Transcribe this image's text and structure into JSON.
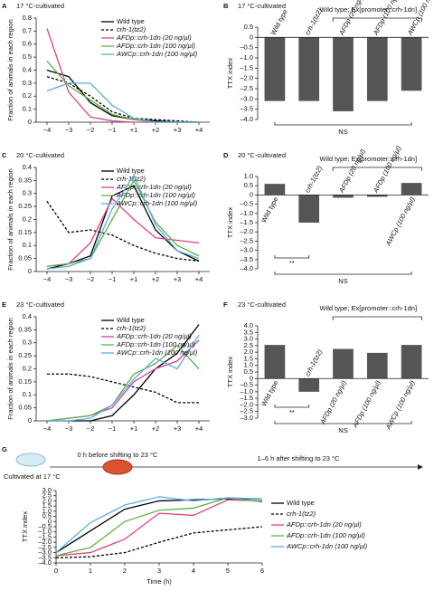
{
  "chart_data": [
    {
      "type": "line",
      "label": "A",
      "title": "17 °C-cultivated",
      "ylabel": "Fraction of animals in each region",
      "categories": [
        "−4",
        "−3",
        "−2",
        "−1",
        "+1",
        "+2",
        "+3",
        "+4"
      ],
      "ylim": [
        0,
        0.8
      ],
      "yticks": [
        0.8,
        0.7,
        0.6,
        0.5,
        0.4,
        0.3,
        0.2,
        0.1,
        0
      ],
      "series": [
        {
          "name": "Wild type",
          "color": "#000000",
          "values": [
            0.4,
            0.35,
            0.15,
            0.05,
            0.02,
            0.01,
            0,
            0
          ]
        },
        {
          "name": "crh-1(tz2)",
          "color": "#000000",
          "dash": true,
          "values": [
            0.35,
            0.3,
            0.2,
            0.08,
            0.03,
            0.02,
            0.01,
            0
          ]
        },
        {
          "name": "AFDp::crh-1dn (20 ng/µl)",
          "color": "#e0408a",
          "values": [
            0.72,
            0.23,
            0.04,
            0.01,
            0,
            0,
            0,
            0
          ]
        },
        {
          "name": "AFDp::crh-1dn (100 ng/µl)",
          "color": "#5fb04a",
          "values": [
            0.47,
            0.28,
            0.17,
            0.06,
            0.02,
            0,
            0,
            0
          ]
        },
        {
          "name": "AWCp::crh-1dn (100 ng/µl)",
          "color": "#5aaee0",
          "values": [
            0.24,
            0.3,
            0.3,
            0.13,
            0.03,
            0,
            0,
            0
          ]
        }
      ]
    },
    {
      "type": "bar",
      "label": "B",
      "title": "17 °C-cultivated",
      "ylabel": "TTX index",
      "categories": [
        "Wild type",
        "crh-1(tz2)",
        "AFDp (20 ng/µl)",
        "AFDp (100 ng/µl)",
        "AWCp (100 ng/µl)"
      ],
      "values": [
        -3.1,
        -3.1,
        -3.6,
        -3.1,
        -2.6
      ],
      "color": "#555555",
      "ylim": [
        -4,
        0.5
      ],
      "yticks": [
        0.5,
        0,
        {
          "value": -0.5,
          "label": "–0.5"
        },
        {
          "value": -1,
          "label": "–1.0"
        },
        {
          "value": -1.5,
          "label": "–1.5"
        },
        {
          "value": -2,
          "label": "–2.0"
        },
        {
          "value": -2.5,
          "label": "–2.5"
        },
        {
          "value": -3,
          "label": "–3.0"
        },
        {
          "value": -3.5,
          "label": "–3.5"
        },
        {
          "value": -4,
          "label": "–4.0"
        }
      ],
      "bracket_label": "Wild type; Ex[promoter::crh-1dn]",
      "ns_label": "NS"
    },
    {
      "type": "line",
      "label": "C",
      "title": "20 °C-cultivated",
      "ylabel": "Fraction of animals in each region",
      "categories": [
        "−4",
        "−3",
        "−2",
        "−1",
        "+1",
        "+2",
        "+3",
        "+4"
      ],
      "ylim": [
        0,
        0.4
      ],
      "yticks": [
        0.4,
        0.35,
        0.3,
        0.25,
        0.2,
        0.15,
        0.1,
        0.05,
        0
      ],
      "series": [
        {
          "name": "Wild type",
          "color": "#000000",
          "values": [
            0.01,
            0.03,
            0.06,
            0.29,
            0.33,
            0.16,
            0.08,
            0.04
          ]
        },
        {
          "name": "crh-1(tz2)",
          "color": "#000000",
          "dash": true,
          "values": [
            0.27,
            0.15,
            0.16,
            0.14,
            0.1,
            0.07,
            0.05,
            0.04
          ]
        },
        {
          "name": "AFDp::crh-1dn (20 ng/µl)",
          "color": "#e0408a",
          "values": [
            0.02,
            0.03,
            0.11,
            0.28,
            0.2,
            0.13,
            0.12,
            0.11
          ]
        },
        {
          "name": "AFDp::crh-1dn (100 ng/µl)",
          "color": "#5fb04a",
          "values": [
            0.02,
            0.03,
            0.05,
            0.2,
            0.35,
            0.19,
            0.1,
            0.06
          ]
        },
        {
          "name": "AWCp::crh-1dn (100 ng/µl)",
          "color": "#5aaee0",
          "values": [
            0.01,
            0.02,
            0.05,
            0.24,
            0.37,
            0.18,
            0.08,
            0.05
          ]
        }
      ]
    },
    {
      "type": "bar",
      "label": "D",
      "title": "20 °C-cultivated",
      "ylabel": "TTX index",
      "categories": [
        "Wild type",
        "crh-1(tz2)",
        "AFDp (20 ng/µl)",
        "AFDp (100 ng/µl)",
        "AWCp (100 ng/µl)"
      ],
      "values": [
        0.6,
        -1.5,
        -0.15,
        -0.1,
        0.65
      ],
      "color": "#555555",
      "ylim": [
        -4,
        1
      ],
      "yticks": [
        {
          "value": 1,
          "label": "1.0"
        },
        0.5,
        0,
        {
          "value": -0.5,
          "label": "–0.5"
        },
        {
          "value": -1,
          "label": "–1.0"
        },
        {
          "value": -1.5,
          "label": "–1.5"
        },
        {
          "value": -2,
          "label": "–2.0"
        },
        {
          "value": -2.5,
          "label": "–2.5"
        },
        {
          "value": -3,
          "label": "–3.0"
        },
        {
          "value": -3.5,
          "label": "–3.5"
        },
        {
          "value": -4,
          "label": "–4.0"
        }
      ],
      "bracket_label": "Wild type; Ex[promoter::crh-1dn]",
      "ns_label": "NS",
      "sig_label": "**"
    },
    {
      "type": "line",
      "label": "E",
      "title": "23 °C-cultivated",
      "ylabel": "Fraction of animals in each region",
      "categories": [
        "−4",
        "−3",
        "−2",
        "−1",
        "+1",
        "+2",
        "+3",
        "+4"
      ],
      "ylim": [
        0,
        0.4
      ],
      "yticks": [
        0.4,
        0.35,
        0.3,
        0.25,
        0.2,
        0.15,
        0.1,
        0.05,
        0
      ],
      "series": [
        {
          "name": "Wild type",
          "color": "#000000",
          "values": [
            0,
            0,
            0,
            0.02,
            0.1,
            0.2,
            0.26,
            0.37
          ]
        },
        {
          "name": "crh-1(tz2)",
          "color": "#000000",
          "dash": true,
          "values": [
            0.18,
            0.18,
            0.17,
            0.15,
            0.13,
            0.11,
            0.07,
            0.07
          ]
        },
        {
          "name": "AFDp::crh-1dn (20 ng/µl)",
          "color": "#e0408a",
          "values": [
            0,
            0.01,
            0.02,
            0.05,
            0.15,
            0.2,
            0.23,
            0.31
          ]
        },
        {
          "name": "AFDp::crh-1dn (100 ng/µl)",
          "color": "#5fb04a",
          "values": [
            0,
            0.01,
            0.02,
            0.06,
            0.18,
            0.22,
            0.29,
            0.2
          ]
        },
        {
          "name": "AWCp::crh-1dn (100 ng/µl)",
          "color": "#5aaee0",
          "values": [
            0,
            0,
            0.01,
            0.06,
            0.16,
            0.24,
            0.2,
            0.33
          ]
        }
      ]
    },
    {
      "type": "bar",
      "label": "F",
      "title": "23 °C-cultivated",
      "ylabel": "TTX index",
      "categories": [
        "Wild type",
        "crh-1(tz2)",
        "AFDp (20 ng/µl)",
        "AFDp (100 ng/µl)",
        "AWCp (100 ng/µl)"
      ],
      "values": [
        2.55,
        -1,
        2.25,
        1.95,
        2.55
      ],
      "color": "#555555",
      "ylim": [
        -3,
        4
      ],
      "yticks": [
        {
          "value": 4,
          "label": "4.0"
        },
        3.5,
        {
          "value": 3,
          "label": "3.0"
        },
        2.5,
        {
          "value": 2,
          "label": "2.0"
        },
        1.5,
        {
          "value": 1,
          "label": "1.0"
        },
        0.5,
        0,
        {
          "value": -0.5,
          "label": "–0.5"
        },
        {
          "value": -1,
          "label": "–1.0"
        },
        {
          "value": -1.5,
          "label": "–1.5"
        },
        {
          "value": -2,
          "label": "–2.0"
        },
        {
          "value": -2.5,
          "label": "–2.5"
        },
        {
          "value": -3,
          "label": "–3.0"
        }
      ],
      "bracket_label": "Wild type; Ex[promoter::crh-1dn]",
      "ns_label": "NS",
      "sig_label": "**"
    },
    {
      "type": "line",
      "label": "G",
      "ylabel": "TTX index",
      "xlabel": "Time (h)",
      "annotations": [
        "Cultivated at 17 °C",
        "0 h before shifting to 23 °C",
        "1–6 h after shifting to 23 °C"
      ],
      "x": [
        0,
        1,
        2,
        3,
        4,
        5,
        6
      ],
      "xlim": [
        0,
        6
      ],
      "xticks": [
        0,
        1,
        2,
        3,
        4,
        5,
        6
      ],
      "ylim": [
        -4,
        3
      ],
      "yticks": [
        {
          "value": 3,
          "label": "3.0"
        },
        2.5,
        {
          "value": 2,
          "label": "2.0"
        },
        1.5,
        {
          "value": 1,
          "label": "1.0"
        },
        0.5,
        0,
        {
          "value": -0.5,
          "label": "–0.5"
        },
        {
          "value": -1,
          "label": "–1.0"
        },
        {
          "value": -1.5,
          "label": "–1.5"
        },
        {
          "value": -2,
          "label": "–2.0"
        },
        {
          "value": -2.5,
          "label": "–2.5"
        },
        {
          "value": -3,
          "label": "–3.0"
        },
        {
          "value": -3.5,
          "label": "–3.5"
        },
        {
          "value": -4,
          "label": "–4.0"
        }
      ],
      "series": [
        {
          "name": "Wild type",
          "color": "#000000",
          "values": [
            -3.0,
            -0.9,
            1.2,
            2.0,
            2.1,
            2.2,
            2.2
          ]
        },
        {
          "name": "crh-1(tz2)",
          "color": "#000000",
          "dash": true,
          "values": [
            -3.5,
            -3.4,
            -3.0,
            -2.0,
            -1.1,
            -0.8,
            -0.5
          ]
        },
        {
          "name": "AFDp::crh-1dn (20 ng/µl)",
          "color": "#e0408a",
          "values": [
            -3.3,
            -3.0,
            -1.7,
            0.8,
            0.6,
            2.1,
            2.0
          ]
        },
        {
          "name": "AFDp::crh-1dn (100 ng/µl)",
          "color": "#5fb04a",
          "values": [
            -3.3,
            -2.5,
            0.0,
            1.1,
            1.3,
            2.3,
            1.9
          ]
        },
        {
          "name": "AWCp::crh-1dn (100 ng/µl)",
          "color": "#5aaee0",
          "values": [
            -3.0,
            -0.1,
            1.6,
            2.4,
            2.0,
            2.3,
            2.2
          ]
        }
      ]
    }
  ]
}
